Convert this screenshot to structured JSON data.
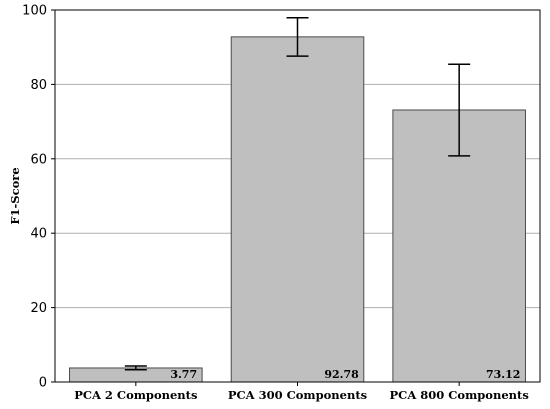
{
  "chart_data": {
    "type": "bar",
    "title": "",
    "xlabel": "",
    "ylabel": "F1-Score",
    "ylim": [
      0,
      100
    ],
    "yticks": [
      0,
      20,
      40,
      60,
      80,
      100
    ],
    "categories": [
      "PCA 2 Components",
      "PCA 300 Components",
      "PCA 800 Components"
    ],
    "values": [
      3.77,
      92.78,
      73.12
    ],
    "value_labels": [
      "3.77",
      "92.78",
      "73.12"
    ],
    "error_low": [
      3.3,
      87.6,
      60.8
    ],
    "error_high": [
      4.3,
      97.9,
      85.4
    ],
    "grid": "horizontal",
    "legend": "none",
    "colors": {
      "bar_fill": "#bfbfbf",
      "bar_edge": "#4a4a4a",
      "grid": "#b0b0b0",
      "error_bar": "#000000"
    }
  }
}
